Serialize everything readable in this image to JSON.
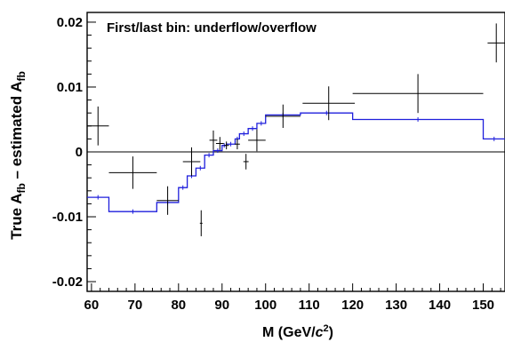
{
  "chart_data": {
    "type": "line",
    "annotation": "First/last bin: underflow/overflow",
    "xlabel": {
      "main": "M  (GeV/",
      "c": "c",
      "sup": "2",
      "close": ")"
    },
    "ylabel": {
      "part1": "True A",
      "sub1": "fb",
      "part2": " – estimated A",
      "sub2": "fb"
    },
    "xlim": [
      59,
      155
    ],
    "ylim": [
      -0.0215,
      0.0215
    ],
    "x_ticks": [
      60,
      70,
      80,
      90,
      100,
      110,
      120,
      130,
      140,
      150
    ],
    "y_ticks": [
      -0.02,
      -0.01,
      0,
      0.01,
      0.02
    ],
    "y_tick_labels": [
      "-0.02",
      "-0.01",
      "0",
      "0.01",
      "0.02"
    ],
    "zero_line": true,
    "series": [
      {
        "kind": "step",
        "color": "#1f1fdc",
        "bins": [
          [
            59,
            64,
            -0.007
          ],
          [
            64,
            75,
            -0.0092
          ],
          [
            75,
            80,
            -0.0078
          ],
          [
            80,
            82,
            -0.0055
          ],
          [
            82,
            84,
            -0.0037
          ],
          [
            84,
            86,
            -0.0025
          ],
          [
            86,
            88,
            -0.0005
          ],
          [
            88,
            90,
            0.0002
          ],
          [
            90,
            91,
            0.001
          ],
          [
            91,
            93,
            0.0012
          ],
          [
            93,
            94,
            0.002
          ],
          [
            94,
            96,
            0.0028
          ],
          [
            96,
            98,
            0.0036
          ],
          [
            98,
            100,
            0.0044
          ],
          [
            100,
            108,
            0.0057
          ],
          [
            108,
            120,
            0.006
          ],
          [
            120,
            150,
            0.005
          ],
          [
            150,
            155,
            0.002
          ]
        ]
      },
      {
        "kind": "errorbar",
        "color": "#000000",
        "points": [
          {
            "x": 61.5,
            "y": 0.004,
            "xerr": 2.5,
            "yerr": 0.003
          },
          {
            "x": 69.5,
            "y": -0.0032,
            "xerr": 5.5,
            "yerr": 0.0025
          },
          {
            "x": 77.5,
            "y": -0.0075,
            "xerr": 2.5,
            "yerr": 0.0022
          },
          {
            "x": 83,
            "y": -0.0015,
            "xerr": 2.0,
            "yerr": 0.0022
          },
          {
            "x": 85.2,
            "y": -0.011,
            "xerr": 0.3,
            "yerr": 0.002
          },
          {
            "x": 88,
            "y": 0.0018,
            "xerr": 0.9,
            "yerr": 0.0015
          },
          {
            "x": 89.5,
            "y": 0.0013,
            "xerr": 0.9,
            "yerr": 0.001
          },
          {
            "x": 91,
            "y": 0.001,
            "xerr": 0.6,
            "yerr": 0.0006
          },
          {
            "x": 93.5,
            "y": 0.0012,
            "xerr": 0.6,
            "yerr": 0.0008
          },
          {
            "x": 95.5,
            "y": -0.0015,
            "xerr": 0.6,
            "yerr": 0.0012
          },
          {
            "x": 98,
            "y": 0.0018,
            "xerr": 2.0,
            "yerr": 0.0017
          },
          {
            "x": 104,
            "y": 0.0055,
            "xerr": 4.0,
            "yerr": 0.0018
          },
          {
            "x": 114.5,
            "y": 0.0075,
            "xerr": 6.0,
            "yerr": 0.0026
          },
          {
            "x": 135,
            "y": 0.009,
            "xerr": 15.0,
            "yerr": 0.003
          },
          {
            "x": 153,
            "y": 0.0168,
            "xerr": 2.0,
            "yerr": 0.003
          }
        ]
      }
    ]
  }
}
